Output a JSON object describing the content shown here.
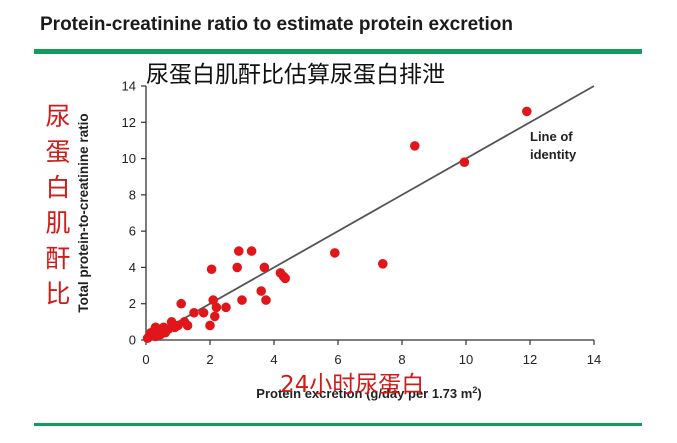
{
  "header": {
    "title": "Protein-creatinine ratio to estimate protein excretion"
  },
  "chart_data": {
    "type": "scatter",
    "title": "尿蛋白肌酐比估算尿蛋白排泄",
    "xlabel": "Protein excretion (g/day per 1.73 m²)",
    "ylabel": "Total protein-to-creatinine ratio",
    "xlabel_overlay": "24小时尿蛋白",
    "ylabel_overlay": "尿蛋白肌酐比",
    "xlim": [
      0,
      14
    ],
    "ylim": [
      0,
      14
    ],
    "x_ticks": [
      0,
      2,
      4,
      6,
      8,
      10,
      12,
      14
    ],
    "y_ticks": [
      0,
      2,
      4,
      6,
      8,
      10,
      12,
      14
    ],
    "grid": false,
    "identity_line": {
      "label": "Line of identity",
      "from": [
        0,
        0
      ],
      "to": [
        14,
        14
      ]
    },
    "point_color": "#e0161b",
    "line_color": "#555555",
    "overlay_color": "#d11a1a",
    "series": [
      {
        "x": [
          0.05,
          0.1,
          0.15,
          0.2,
          0.25,
          0.3,
          0.3,
          0.35,
          0.4,
          0.45,
          0.5,
          0.55,
          0.6,
          0.7,
          0.8,
          0.9,
          1.0,
          1.1,
          1.2,
          1.3,
          1.5,
          1.8,
          2.0,
          2.05,
          2.1,
          2.15,
          2.2,
          2.5,
          2.85,
          2.9,
          3.0,
          3.3,
          3.6,
          3.7,
          3.75,
          4.2,
          4.3,
          4.35,
          5.9,
          7.4,
          8.4,
          9.95,
          11.9
        ],
        "y": [
          0.1,
          0.2,
          0.4,
          0.3,
          0.5,
          0.2,
          0.7,
          0.4,
          0.6,
          0.3,
          0.5,
          0.7,
          0.4,
          0.6,
          1.0,
          0.7,
          0.8,
          2.0,
          1.0,
          0.8,
          1.5,
          1.5,
          0.8,
          3.9,
          2.2,
          1.3,
          1.8,
          1.8,
          4.0,
          4.9,
          2.2,
          4.9,
          2.7,
          4.0,
          2.2,
          3.7,
          3.5,
          3.4,
          4.8,
          4.2,
          10.7,
          9.8,
          12.6
        ]
      }
    ]
  }
}
